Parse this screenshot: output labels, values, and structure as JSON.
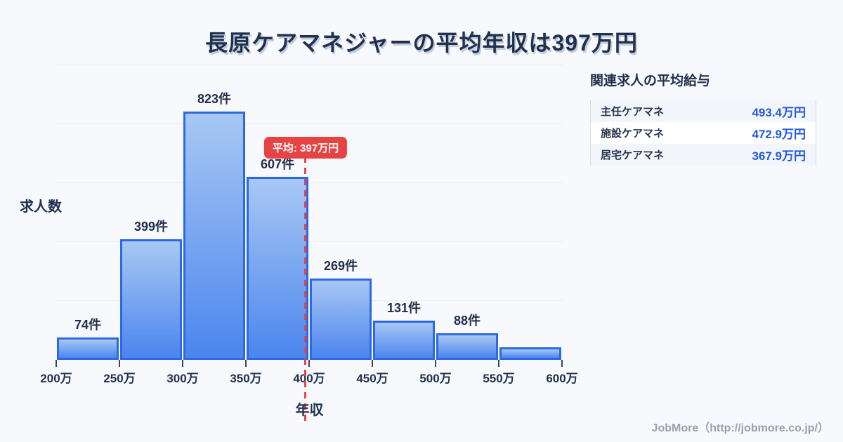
{
  "title": "長原ケアマネジャーの平均年収は397万円",
  "chart_data": {
    "type": "bar",
    "title": "長原ケアマネジャーの平均年収は397万円",
    "xlabel": "年収",
    "ylabel": "求人数",
    "x_tick_labels": [
      "200万",
      "250万",
      "300万",
      "350万",
      "400万",
      "450万",
      "500万",
      "550万",
      "600万"
    ],
    "bin_edges": [
      200,
      250,
      300,
      350,
      400,
      450,
      500,
      550,
      600
    ],
    "values": [
      74,
      399,
      823,
      607,
      269,
      131,
      88,
      42
    ],
    "bar_labels": [
      "74件",
      "399件",
      "823件",
      "607件",
      "269件",
      "131件",
      "88件",
      ""
    ],
    "last_bar_value_estimated": true,
    "ylim": [
      0,
      1000
    ],
    "gridline_step": 200,
    "grid": true,
    "average": {
      "value": 397,
      "badge_label": "平均: 397万円"
    },
    "colors": {
      "bar_fill_top": "#a8c8f4",
      "bar_fill_bottom": "#4b85ee",
      "bar_border": "#2c69e2",
      "average_red": "#e64646",
      "badge_red": "#e84343",
      "heading_navy": "#20304d",
      "value_blue": "#2459df",
      "gridline": "#e9edf3",
      "background": "#f7f9fc",
      "footer_gray": "#9aa1ac"
    }
  },
  "side_panel": {
    "title": "関連求人の平均給与",
    "rows": [
      {
        "label": "主任ケアマネ",
        "value": "493.4万円"
      },
      {
        "label": "施設ケアマネ",
        "value": "472.9万円"
      },
      {
        "label": "居宅ケアマネ",
        "value": "367.9万円"
      }
    ]
  },
  "footer": {
    "credit": "JobMore（http://jobmore.co.jp/）"
  }
}
